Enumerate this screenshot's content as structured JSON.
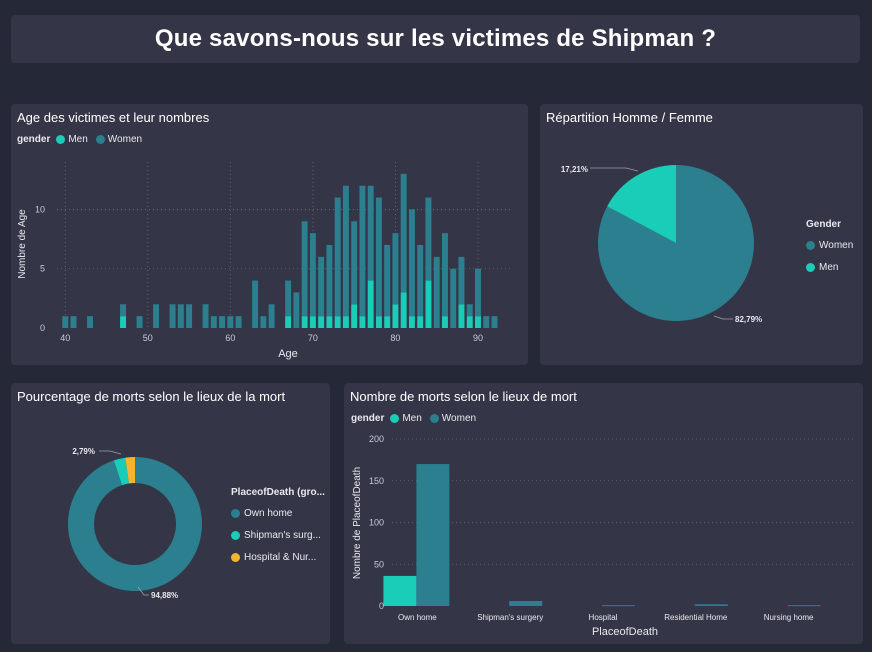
{
  "page_title": "Que savons-nous sur les victimes de Shipman ?",
  "colors": {
    "men": "#19cdb8",
    "women": "#2b7f8e",
    "hospital_nursing": "#f2b531",
    "background": "#252836",
    "card": "#343647"
  },
  "age_chart": {
    "title": "Age des victimes et leur nombres",
    "legend_label": "gender",
    "legend_men": "Men",
    "legend_women": "Women",
    "chart_data": {
      "type": "bar",
      "xlabel": "Age",
      "ylabel": "Nombre de Age",
      "x_ticks": [
        40,
        50,
        60,
        70,
        80,
        90
      ],
      "y_ticks": [
        0,
        5,
        10
      ],
      "xlim": [
        39,
        94
      ],
      "ylim": [
        0,
        14
      ],
      "stacked": true,
      "series": [
        {
          "name": "Men",
          "color": "#19cdb8",
          "points": [
            [
              47,
              1
            ],
            [
              67,
              1
            ],
            [
              69,
              1
            ],
            [
              70,
              1
            ],
            [
              71,
              1
            ],
            [
              72,
              1
            ],
            [
              73,
              1
            ],
            [
              74,
              1
            ],
            [
              75,
              2
            ],
            [
              76,
              1
            ],
            [
              77,
              4
            ],
            [
              78,
              1
            ],
            [
              79,
              1
            ],
            [
              80,
              2
            ],
            [
              81,
              3
            ],
            [
              82,
              1
            ],
            [
              83,
              1
            ],
            [
              84,
              4
            ],
            [
              86,
              1
            ],
            [
              88,
              2
            ],
            [
              89,
              1
            ],
            [
              90,
              1
            ]
          ]
        },
        {
          "name": "Women",
          "color": "#2b7f8e",
          "points": [
            [
              40,
              1
            ],
            [
              41,
              1
            ],
            [
              43,
              1
            ],
            [
              47,
              1
            ],
            [
              49,
              1
            ],
            [
              51,
              2
            ],
            [
              53,
              2
            ],
            [
              54,
              2
            ],
            [
              55,
              2
            ],
            [
              57,
              2
            ],
            [
              58,
              1
            ],
            [
              59,
              1
            ],
            [
              60,
              1
            ],
            [
              61,
              1
            ],
            [
              63,
              4
            ],
            [
              64,
              1
            ],
            [
              65,
              2
            ],
            [
              67,
              3
            ],
            [
              68,
              3
            ],
            [
              69,
              8
            ],
            [
              70,
              7
            ],
            [
              71,
              5
            ],
            [
              72,
              6
            ],
            [
              73,
              10
            ],
            [
              74,
              11
            ],
            [
              75,
              7
            ],
            [
              76,
              11
            ],
            [
              77,
              8
            ],
            [
              78,
              10
            ],
            [
              79,
              6
            ],
            [
              80,
              6
            ],
            [
              81,
              10
            ],
            [
              82,
              9
            ],
            [
              83,
              6
            ],
            [
              84,
              7
            ],
            [
              85,
              6
            ],
            [
              86,
              7
            ],
            [
              87,
              5
            ],
            [
              88,
              4
            ],
            [
              89,
              1
            ],
            [
              90,
              4
            ],
            [
              91,
              1
            ],
            [
              92,
              1
            ]
          ]
        }
      ]
    }
  },
  "gender_pie": {
    "title": "Répartition Homme / Femme",
    "legend_header": "Gender",
    "legend_women": "Women",
    "legend_men": "Men",
    "chart_data": {
      "type": "pie",
      "slices": [
        {
          "label": "Women",
          "value": 82.79,
          "display": "82,79%",
          "color": "#2b7f8e"
        },
        {
          "label": "Men",
          "value": 17.21,
          "display": "17,21%",
          "color": "#19cdb8"
        }
      ]
    }
  },
  "place_donut": {
    "title": "Pourcentage de morts selon le lieux de la mort",
    "legend_header": "PlaceofDeath (gro...",
    "legend_items": [
      "Own home",
      "Shipman's surg...",
      "Hospital & Nur..."
    ],
    "chart_data": {
      "type": "pie",
      "slices": [
        {
          "label": "Own home",
          "value": 94.88,
          "display": "94,88%",
          "color": "#2b7f8e"
        },
        {
          "label": "Shipman's surgery",
          "value": 2.79,
          "display": "2,79%",
          "color": "#19cdb8"
        },
        {
          "label": "Hospital & Nursing home",
          "value": 2.33,
          "display": "",
          "color": "#f2b531"
        }
      ]
    }
  },
  "place_bars": {
    "title": "Nombre de morts selon le lieux de mort",
    "legend_label": "gender",
    "legend_men": "Men",
    "legend_women": "Women",
    "chart_data": {
      "type": "bar",
      "xlabel": "PlaceofDeath",
      "ylabel": "Nombre de PlaceofDeath",
      "y_ticks": [
        0,
        50,
        100,
        150,
        200
      ],
      "ylim": [
        0,
        200
      ],
      "categories": [
        "Own home",
        "Shipman's surgery",
        "Hospital",
        "Residential Home",
        "Nursing home"
      ],
      "series": [
        {
          "name": "Men",
          "color": "#19cdb8",
          "values": [
            36,
            0,
            0,
            0,
            0
          ]
        },
        {
          "name": "Women",
          "color": "#2b7f8e",
          "values": [
            170,
            6,
            1,
            2,
            1
          ]
        }
      ]
    }
  }
}
